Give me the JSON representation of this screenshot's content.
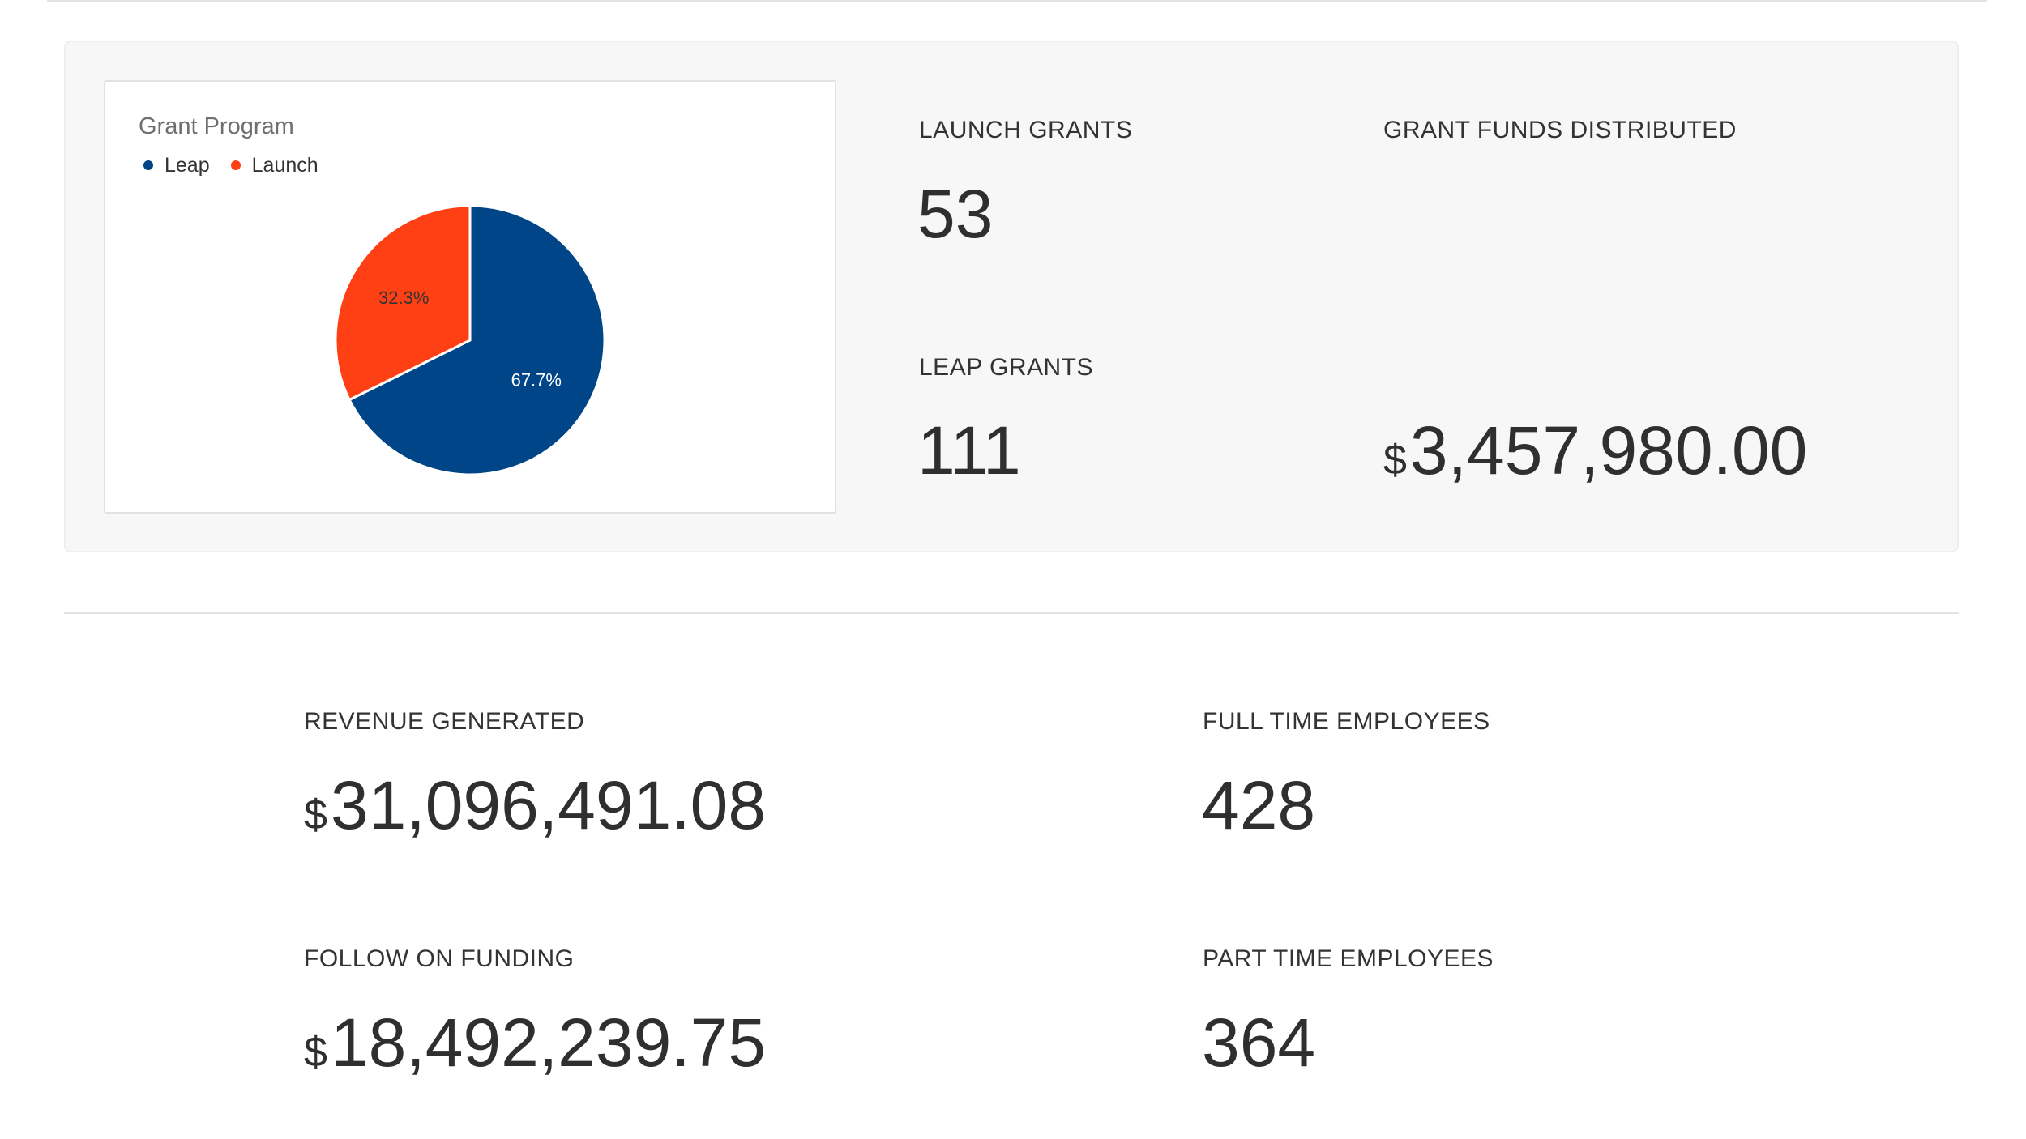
{
  "chart_data": {
    "type": "pie",
    "title": "Grant Program",
    "legend_placement": "top-left",
    "categories": [
      "Leap",
      "Launch"
    ],
    "values": [
      67.7,
      32.3
    ],
    "value_labels": [
      "67.7%",
      "32.3%"
    ],
    "colors": [
      "#004587",
      "#ff4015"
    ]
  },
  "stats": {
    "launch_grants": {
      "label": "LAUNCH GRANTS",
      "value": "53"
    },
    "leap_grants": {
      "label": "LEAP GRANTS",
      "value": "111"
    },
    "grant_funds": {
      "label": "GRANT FUNDS DISTRIBUTED",
      "currency": "$",
      "value": "3,457,980.00"
    },
    "revenue": {
      "label": "REVENUE GENERATED",
      "currency": "$",
      "value": "31,096,491.08"
    },
    "full_time": {
      "label": "FULL TIME EMPLOYEES",
      "value": "428"
    },
    "follow_on": {
      "label": "FOLLOW ON FUNDING",
      "currency": "$",
      "value": "18,492,239.75"
    },
    "part_time": {
      "label": "PART TIME EMPLOYEES",
      "value": "364"
    }
  }
}
